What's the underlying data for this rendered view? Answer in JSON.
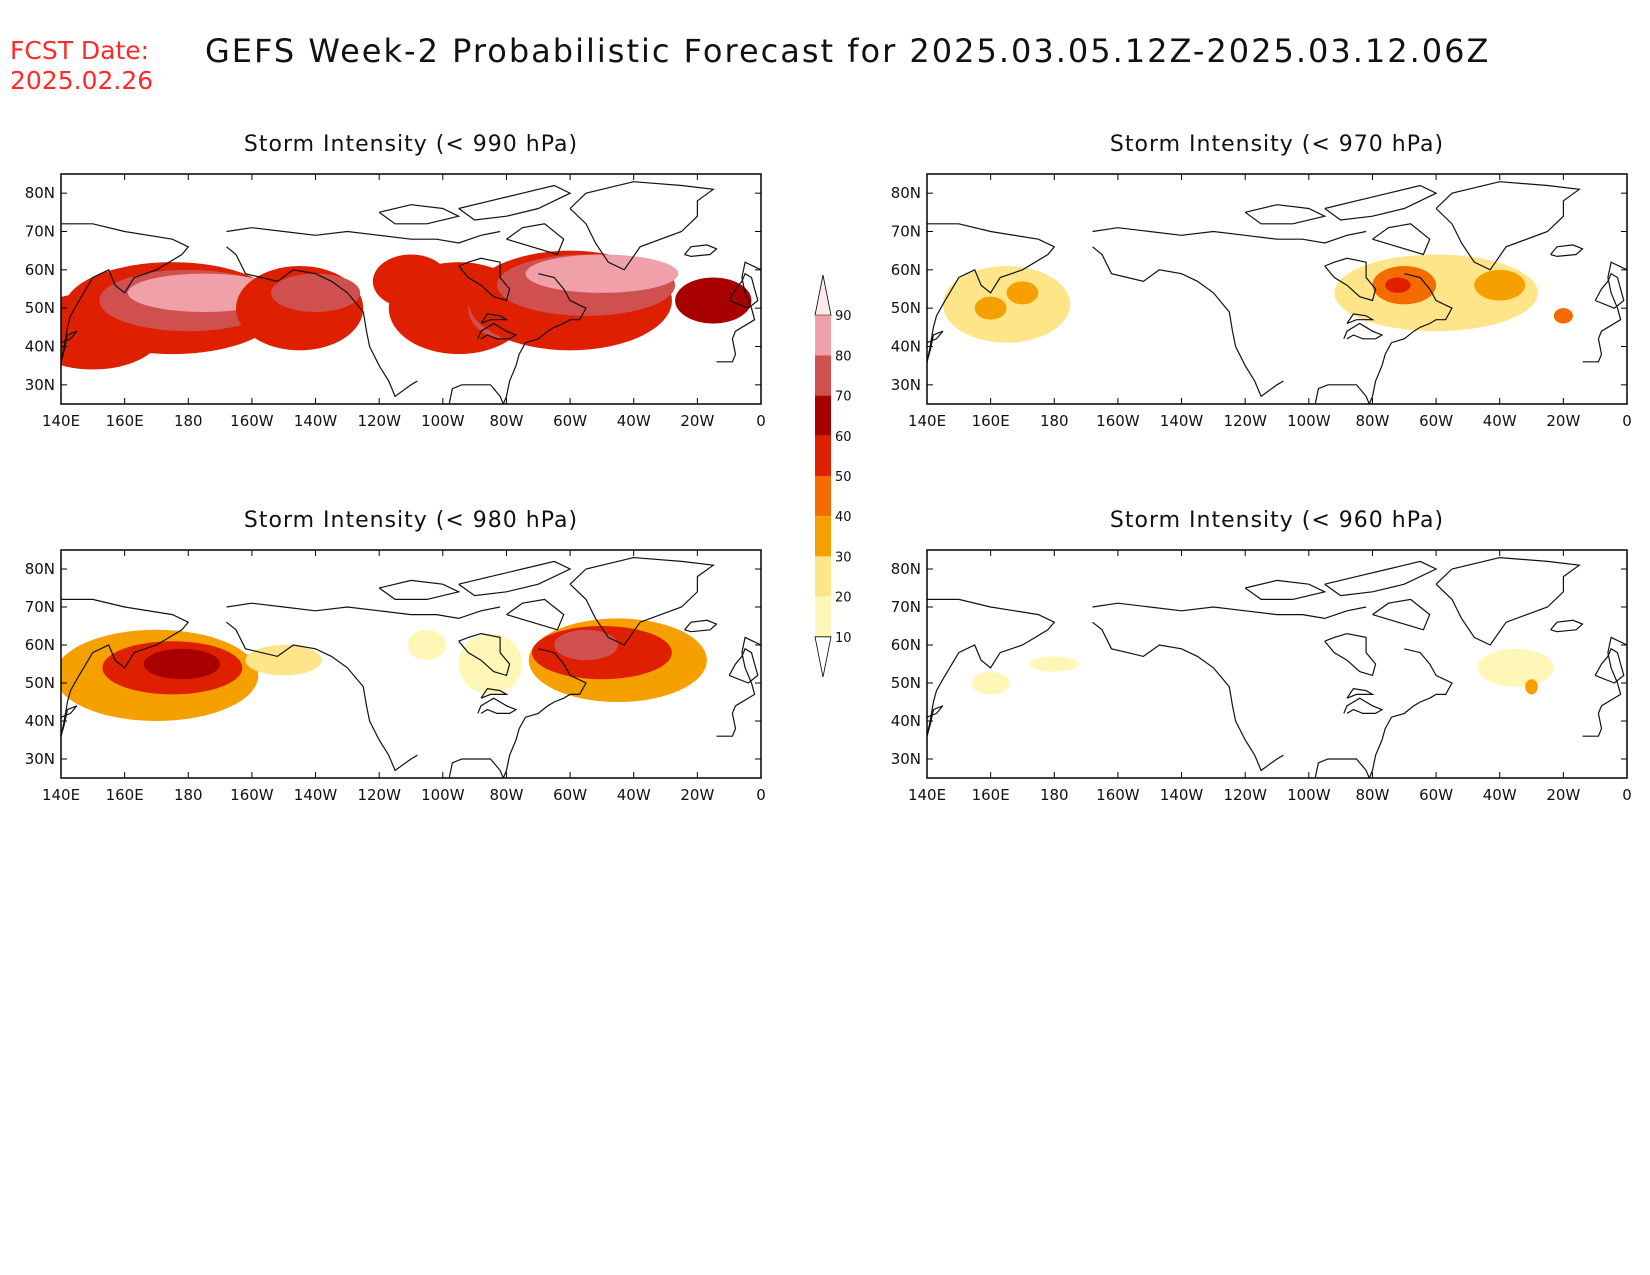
{
  "header": {
    "fcst_label": "FCST Date:",
    "fcst_date": "2025.02.26",
    "title": "GEFS Week-2 Probabilistic Forecast for 2025.03.05.12Z-2025.03.12.06Z"
  },
  "panels": [
    {
      "title": "Storm Intensity (< 990 hPa)",
      "blobs": [
        {
          "lon": 150,
          "lat": 44,
          "level": 50,
          "rx": 22,
          "ry": 10
        },
        {
          "lon": 175,
          "lat": 50,
          "level": 50,
          "rx": 34,
          "ry": 12
        },
        {
          "lon": 180,
          "lat": 52,
          "level": 70,
          "rx": 28,
          "ry": 8
        },
        {
          "lon": 185,
          "lat": 54,
          "level": 80,
          "rx": 24,
          "ry": 5
        },
        {
          "lon": 215,
          "lat": 50,
          "level": 50,
          "rx": 20,
          "ry": 11
        },
        {
          "lon": 220,
          "lat": 54,
          "level": 70,
          "rx": 14,
          "ry": 5
        },
        {
          "lon": 250,
          "lat": 57,
          "level": 50,
          "rx": 12,
          "ry": 7
        },
        {
          "lon": 265,
          "lat": 50,
          "level": 50,
          "rx": 22,
          "ry": 12
        },
        {
          "lon": 280,
          "lat": 50,
          "level": 70,
          "rx": 12,
          "ry": 8
        },
        {
          "lon": 300,
          "lat": 52,
          "level": 50,
          "rx": 32,
          "ry": 13
        },
        {
          "lon": 305,
          "lat": 56,
          "level": 70,
          "rx": 28,
          "ry": 8
        },
        {
          "lon": 310,
          "lat": 59,
          "level": 80,
          "rx": 24,
          "ry": 5
        },
        {
          "lon": 345,
          "lat": 52,
          "level": 60,
          "rx": 12,
          "ry": 6
        }
      ]
    },
    {
      "title": "Storm Intensity (< 970 hPa)",
      "blobs": [
        {
          "lon": 165,
          "lat": 51,
          "level": 20,
          "rx": 20,
          "ry": 10
        },
        {
          "lon": 160,
          "lat": 50,
          "level": 30,
          "rx": 5,
          "ry": 3
        },
        {
          "lon": 170,
          "lat": 54,
          "level": 30,
          "rx": 5,
          "ry": 3
        },
        {
          "lon": 300,
          "lat": 54,
          "level": 20,
          "rx": 32,
          "ry": 10
        },
        {
          "lon": 290,
          "lat": 56,
          "level": 40,
          "rx": 10,
          "ry": 5
        },
        {
          "lon": 288,
          "lat": 56,
          "level": 50,
          "rx": 4,
          "ry": 2
        },
        {
          "lon": 320,
          "lat": 56,
          "level": 30,
          "rx": 8,
          "ry": 4
        },
        {
          "lon": 340,
          "lat": 48,
          "level": 40,
          "rx": 3,
          "ry": 2
        }
      ]
    },
    {
      "title": "Storm Intensity (< 980 hPa)",
      "blobs": [
        {
          "lon": 170,
          "lat": 52,
          "level": 30,
          "rx": 32,
          "ry": 12
        },
        {
          "lon": 175,
          "lat": 54,
          "level": 50,
          "rx": 22,
          "ry": 7
        },
        {
          "lon": 178,
          "lat": 55,
          "level": 60,
          "rx": 12,
          "ry": 4
        },
        {
          "lon": 210,
          "lat": 56,
          "level": 20,
          "rx": 12,
          "ry": 4
        },
        {
          "lon": 255,
          "lat": 60,
          "level": 10,
          "rx": 6,
          "ry": 4
        },
        {
          "lon": 275,
          "lat": 55,
          "level": 10,
          "rx": 10,
          "ry": 8
        },
        {
          "lon": 315,
          "lat": 56,
          "level": 30,
          "rx": 28,
          "ry": 11
        },
        {
          "lon": 310,
          "lat": 58,
          "level": 50,
          "rx": 22,
          "ry": 7
        },
        {
          "lon": 305,
          "lat": 60,
          "level": 70,
          "rx": 10,
          "ry": 4
        }
      ]
    },
    {
      "title": "Storm Intensity (< 960 hPa)",
      "blobs": [
        {
          "lon": 160,
          "lat": 50,
          "level": 10,
          "rx": 6,
          "ry": 3
        },
        {
          "lon": 180,
          "lat": 55,
          "level": 10,
          "rx": 8,
          "ry": 2
        },
        {
          "lon": 325,
          "lat": 54,
          "level": 10,
          "rx": 12,
          "ry": 5
        },
        {
          "lon": 330,
          "lat": 49,
          "level": 30,
          "rx": 2,
          "ry": 2
        }
      ]
    }
  ],
  "axes": {
    "lon_labels": [
      "140E",
      "160E",
      "180",
      "160W",
      "140W",
      "120W",
      "100W",
      "80W",
      "60W",
      "40W",
      "20W",
      "0"
    ],
    "lat_labels": [
      "80N",
      "70N",
      "60N",
      "50N",
      "40N",
      "30N"
    ]
  },
  "colorbar": {
    "levels": [
      "10",
      "20",
      "30",
      "40",
      "50",
      "60",
      "70",
      "80",
      "90"
    ],
    "colors": [
      "#ffffff",
      "#fff6b8",
      "#ffe58a",
      "#f6a000",
      "#f46b00",
      "#de2000",
      "#a80000",
      "#d05050",
      "#f0a0a8",
      "#ffe8ea"
    ]
  }
}
